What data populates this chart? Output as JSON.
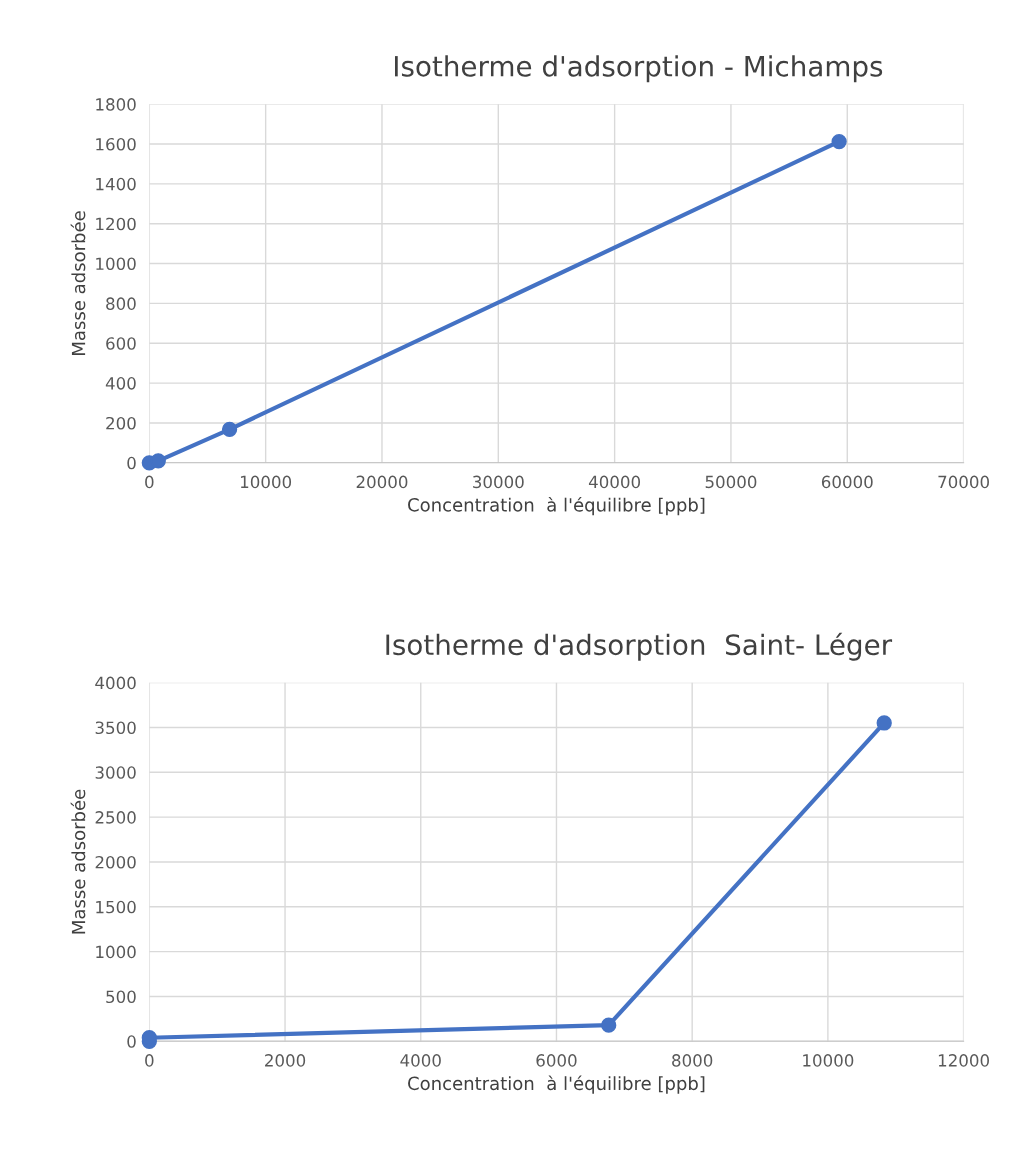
{
  "chart_data": [
    {
      "type": "line",
      "title": "Isotherme d'adsorption - Michamps",
      "xlabel": "Concentration  à l'équilibre [ppb]",
      "ylabel": "Masse adsorbée",
      "x": [
        0,
        770,
        6900,
        59300
      ],
      "series": [
        {
          "color": "#4472c4",
          "values": [
            0,
            10,
            168,
            1612
          ]
        }
      ],
      "xlim": [
        0,
        70000
      ],
      "xticks": [
        0,
        10000,
        20000,
        30000,
        40000,
        50000,
        60000,
        70000
      ],
      "ylim": [
        0,
        1800
      ],
      "yticks": [
        0,
        200,
        400,
        600,
        800,
        1000,
        1200,
        1400,
        1600,
        1800
      ],
      "grid": true,
      "marker": "circle",
      "line_style": "solid"
    },
    {
      "type": "line",
      "title": "Isotherme d'adsorption  Saint- Léger",
      "xlabel": "Concentration  à l'équilibre [ppb]",
      "ylabel": "Masse adsorbée",
      "x": [
        0,
        0,
        6770,
        10830
      ],
      "series": [
        {
          "color": "#4472c4",
          "values": [
            0,
            40,
            180,
            3550
          ]
        }
      ],
      "xlim": [
        0,
        12000
      ],
      "xticks": [
        0,
        2000,
        4000,
        6000,
        8000,
        10000,
        12000
      ],
      "ylim": [
        0,
        4000
      ],
      "yticks": [
        0,
        500,
        1000,
        1500,
        2000,
        2500,
        3000,
        3500,
        4000
      ],
      "grid": true,
      "marker": "circle",
      "line_style": "solid"
    }
  ]
}
